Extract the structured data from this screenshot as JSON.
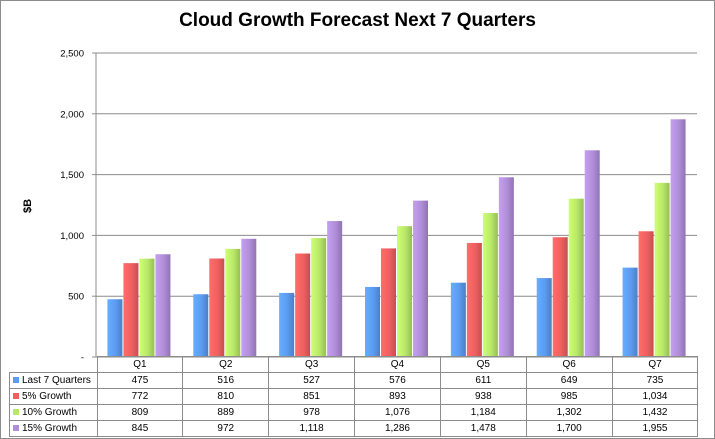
{
  "chart_data": {
    "type": "bar",
    "title": "Cloud Growth Forecast Next 7 Quarters",
    "ylabel": "$B",
    "xlabel": "",
    "ylim": [
      0,
      2500
    ],
    "yticks": [
      "-",
      "500",
      "1,000",
      "1,500",
      "2,000",
      "2,500"
    ],
    "categories": [
      "Q1",
      "Q2",
      "Q3",
      "Q4",
      "Q5",
      "Q6",
      "Q7"
    ],
    "grid": true,
    "legend": "data-table",
    "series": [
      {
        "name": "Last 7 Quarters",
        "color": "#5b9bf0",
        "values": [
          475,
          516,
          527,
          576,
          611,
          649,
          735
        ],
        "labels": [
          "475",
          "516",
          "527",
          "576",
          "611",
          "649",
          "735"
        ]
      },
      {
        "name": "5% Growth",
        "color": "#f06060",
        "values": [
          772,
          810,
          851,
          893,
          938,
          985,
          1034
        ],
        "labels": [
          "772",
          "810",
          "851",
          "893",
          "938",
          "985",
          "1,034"
        ]
      },
      {
        "name": "10% Growth",
        "color": "#b8e868",
        "values": [
          809,
          889,
          978,
          1076,
          1184,
          1302,
          1432
        ],
        "labels": [
          "809",
          "889",
          "978",
          "1,076",
          "1,184",
          "1,302",
          "1,432"
        ]
      },
      {
        "name": "15% Growth",
        "color": "#b08ed8",
        "values": [
          845,
          972,
          1118,
          1286,
          1478,
          1700,
          1955
        ],
        "labels": [
          "845",
          "972",
          "1,118",
          "1,286",
          "1,478",
          "1,700",
          "1,955"
        ]
      }
    ]
  }
}
